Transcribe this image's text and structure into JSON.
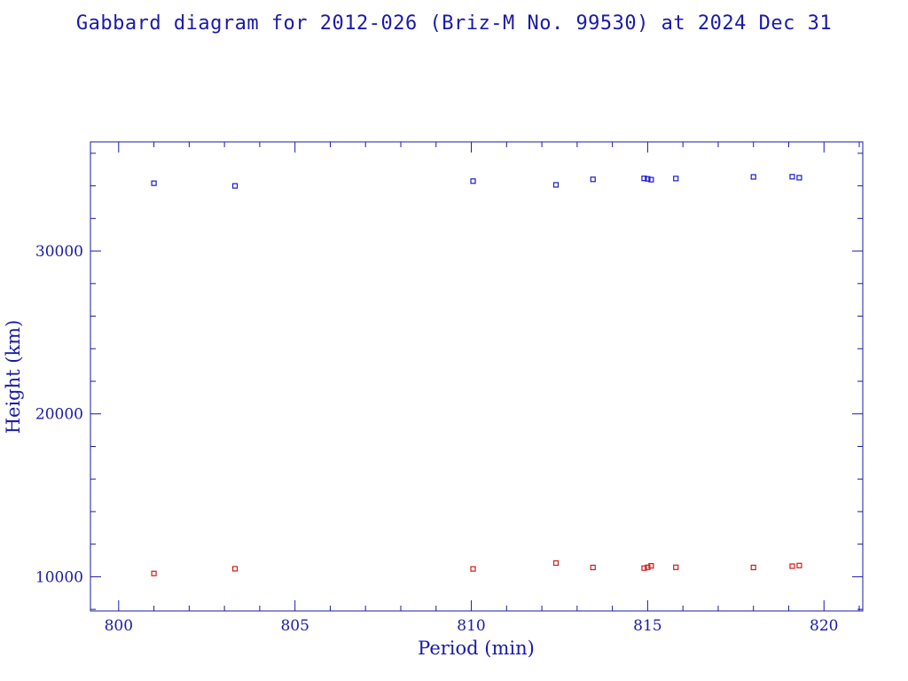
{
  "chart_data": {
    "type": "scatter",
    "title": "Gabbard diagram for 2012-026 (Briz-M No. 99530) at 2024 Dec 31",
    "xlabel": "Period (min)",
    "ylabel": "Height (km)",
    "xlim": [
      799.2,
      821.1
    ],
    "ylim": [
      7900,
      36700
    ],
    "xticks": [
      800,
      805,
      810,
      815,
      820
    ],
    "xtick_labels": [
      "800",
      "805",
      "810",
      "815",
      "820"
    ],
    "yticks": [
      10000,
      20000,
      30000
    ],
    "ytick_labels": [
      "10000",
      "20000",
      "30000"
    ],
    "x_minor_step": 1,
    "y_minor_step": 2000,
    "grid": false,
    "series": [
      {
        "color": "#1a1ad0",
        "marker": "square",
        "points": [
          [
            801.0,
            34160
          ],
          [
            803.3,
            34000
          ],
          [
            810.05,
            34290
          ],
          [
            812.4,
            34060
          ],
          [
            813.45,
            34400
          ],
          [
            814.9,
            34460
          ],
          [
            815.0,
            34430
          ],
          [
            815.1,
            34380
          ],
          [
            815.8,
            34450
          ],
          [
            818.0,
            34550
          ],
          [
            819.1,
            34560
          ],
          [
            819.3,
            34500
          ]
        ]
      },
      {
        "color": "#d01a1a",
        "marker": "square",
        "points": [
          [
            801.0,
            10200
          ],
          [
            803.3,
            10490
          ],
          [
            810.05,
            10480
          ],
          [
            812.4,
            10840
          ],
          [
            813.45,
            10570
          ],
          [
            814.9,
            10530
          ],
          [
            815.0,
            10580
          ],
          [
            815.1,
            10670
          ],
          [
            815.8,
            10580
          ],
          [
            818.0,
            10570
          ],
          [
            819.1,
            10650
          ],
          [
            819.3,
            10690
          ]
        ]
      }
    ]
  },
  "colors": {
    "axis": "#1a1aa8",
    "text": "#1a1aa8",
    "background": "#ffffff"
  }
}
